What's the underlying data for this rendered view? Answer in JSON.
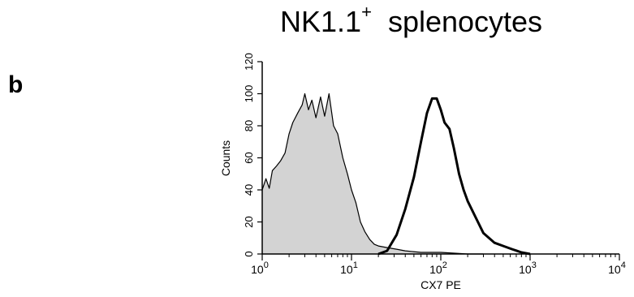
{
  "panel_label": "b",
  "chart_data": {
    "type": "histogram",
    "title_main": "NK1.1",
    "title_sup": "+",
    "title_rest": "splenocytes",
    "xlabel": "CX7 PE",
    "ylabel": "Counts",
    "xscale": "log",
    "xlim": [
      1,
      10000
    ],
    "ylim": [
      0,
      120
    ],
    "x_ticks": [
      {
        "base": "10",
        "exp": "0",
        "value": 1
      },
      {
        "base": "10",
        "exp": "1",
        "value": 10
      },
      {
        "base": "10",
        "exp": "2",
        "value": 100
      },
      {
        "base": "10",
        "exp": "3",
        "value": 1000
      },
      {
        "base": "10",
        "exp": "4",
        "value": 10000
      }
    ],
    "y_ticks": [
      "0",
      "20",
      "40",
      "60",
      "80",
      "100",
      "120"
    ],
    "grid": false,
    "series": [
      {
        "role": "isotype-control",
        "fill": "#d3d3d3",
        "stroke": "#000000",
        "stroke_width": 1.2,
        "points": [
          [
            1.0,
            40
          ],
          [
            1.1,
            47
          ],
          [
            1.2,
            41
          ],
          [
            1.3,
            52
          ],
          [
            1.45,
            55
          ],
          [
            1.6,
            58
          ],
          [
            1.8,
            63
          ],
          [
            2.0,
            75
          ],
          [
            2.2,
            82
          ],
          [
            2.5,
            88
          ],
          [
            2.8,
            93
          ],
          [
            3.0,
            100
          ],
          [
            3.3,
            90
          ],
          [
            3.6,
            96
          ],
          [
            4.0,
            85
          ],
          [
            4.5,
            98
          ],
          [
            5.0,
            86
          ],
          [
            5.6,
            100
          ],
          [
            6.3,
            80
          ],
          [
            7.0,
            75
          ],
          [
            8.0,
            60
          ],
          [
            9.0,
            50
          ],
          [
            10.0,
            40
          ],
          [
            11.2,
            32
          ],
          [
            12.6,
            20
          ],
          [
            14.1,
            14
          ],
          [
            16.0,
            9
          ],
          [
            18.0,
            6
          ],
          [
            20.0,
            5
          ],
          [
            25.0,
            4
          ],
          [
            32.0,
            3
          ],
          [
            40.0,
            2
          ],
          [
            60.0,
            1
          ],
          [
            100.0,
            1
          ],
          [
            200.0,
            0
          ],
          [
            300.0,
            0
          ]
        ]
      },
      {
        "role": "cx7-stain",
        "fill": "none",
        "stroke": "#000000",
        "stroke_width": 3,
        "points": [
          [
            20.0,
            0
          ],
          [
            25.0,
            2
          ],
          [
            32.0,
            12
          ],
          [
            40.0,
            28
          ],
          [
            50.0,
            48
          ],
          [
            60.0,
            70
          ],
          [
            70.0,
            88
          ],
          [
            80.0,
            97
          ],
          [
            90.0,
            97
          ],
          [
            100.0,
            90
          ],
          [
            110.0,
            82
          ],
          [
            125.0,
            78
          ],
          [
            140.0,
            66
          ],
          [
            160.0,
            50
          ],
          [
            180.0,
            40
          ],
          [
            200.0,
            33
          ],
          [
            250.0,
            22
          ],
          [
            300.0,
            13
          ],
          [
            400.0,
            7
          ],
          [
            500.0,
            5
          ],
          [
            630.0,
            3
          ],
          [
            800.0,
            1
          ],
          [
            1000.0,
            0
          ]
        ]
      }
    ]
  }
}
